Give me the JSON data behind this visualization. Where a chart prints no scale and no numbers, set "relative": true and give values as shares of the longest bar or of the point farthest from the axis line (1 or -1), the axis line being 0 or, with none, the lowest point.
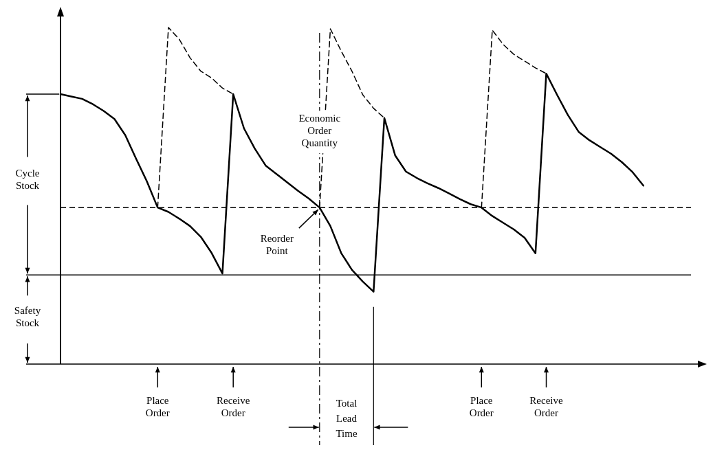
{
  "chart_data": {
    "type": "line",
    "relative": true,
    "categories": [
      null,
      null,
      null,
      null,
      null,
      null,
      null,
      null,
      null,
      null,
      null,
      null,
      null,
      null,
      null,
      null,
      null,
      null,
      null,
      null,
      null,
      null,
      null,
      null,
      null,
      null,
      null,
      null,
      null,
      null,
      null,
      null,
      null,
      null,
      null,
      null,
      null,
      null,
      null,
      null,
      null,
      null,
      null,
      null,
      null,
      null,
      null,
      null,
      null,
      null,
      null,
      null,
      null,
      null,
      null,
      null,
      null,
      null,
      null,
      null,
      null
    ],
    "series": [
      {
        "color": "#000000",
        "line_style": "solid",
        "values": [
          0.802,
          0.795,
          0.788,
          0.772,
          0.752,
          0.728,
          0.68,
          0.61,
          0.543,
          0.465,
          0.452,
          0.432,
          0.41,
          0.378,
          0.33,
          0.269,
          0.802,
          0.7,
          0.64,
          0.59,
          0.565,
          0.54,
          0.515,
          0.492,
          0.465,
          0.41,
          0.33,
          0.28,
          0.245,
          0.215,
          0.731,
          0.62,
          0.572,
          0.553,
          0.537,
          0.523,
          0.507,
          0.49,
          0.475,
          0.465,
          0.44,
          0.42,
          0.4,
          0.375,
          0.329,
          0.863,
          0.8,
          0.74,
          0.69,
          0.665,
          0.645,
          0.625,
          0.6,
          0.57,
          0.53,
          null,
          null,
          null,
          null,
          null,
          null
        ]
      },
      {
        "color": "#000000",
        "line_style": "dashed",
        "values": [
          null,
          null,
          null,
          null,
          null,
          null,
          null,
          null,
          null,
          0.465,
          1,
          0.965,
          0.91,
          0.87,
          0.85,
          0.82,
          0.802,
          null,
          null,
          null,
          null,
          null,
          null,
          null,
          null,
          null,
          null,
          null,
          null,
          null,
          null,
          null,
          null,
          null,
          null,
          null,
          null,
          null,
          null,
          null,
          null,
          null,
          null,
          null,
          null,
          null,
          null,
          null,
          null,
          null,
          null,
          null,
          null,
          null,
          null,
          null,
          null,
          null,
          null,
          null,
          null
        ]
      },
      {
        "color": "#000000",
        "line_style": "dashed",
        "values": [
          null,
          null,
          null,
          null,
          null,
          null,
          null,
          null,
          null,
          null,
          null,
          null,
          null,
          null,
          null,
          null,
          null,
          null,
          null,
          null,
          null,
          null,
          null,
          null,
          0.465,
          0.996,
          0.93,
          0.87,
          0.8,
          0.76,
          0.731,
          null,
          null,
          null,
          null,
          null,
          null,
          null,
          null,
          null,
          null,
          null,
          null,
          null,
          null,
          null,
          null,
          null,
          null,
          null,
          null,
          null,
          null,
          null,
          null,
          null,
          null,
          null,
          null,
          null,
          null
        ]
      },
      {
        "color": "#000000",
        "line_style": "dashed",
        "values": [
          null,
          null,
          null,
          null,
          null,
          null,
          null,
          null,
          null,
          null,
          null,
          null,
          null,
          null,
          null,
          null,
          null,
          null,
          null,
          null,
          null,
          null,
          null,
          null,
          null,
          null,
          null,
          null,
          null,
          null,
          null,
          null,
          null,
          null,
          null,
          null,
          null,
          null,
          null,
          0.465,
          0.992,
          0.95,
          0.92,
          0.9,
          0.88,
          0.863,
          null,
          null,
          null,
          null,
          null,
          null,
          null,
          null,
          null,
          null,
          null,
          null,
          null,
          null,
          null
        ]
      }
    ],
    "ref_lines": [
      {
        "axis": "y",
        "value": 0.265,
        "line_style": "solid"
      },
      {
        "axis": "y",
        "value": 0.465,
        "line_style": "dashed"
      }
    ],
    "annotations": [
      "Cycle Stock",
      "Safety Stock",
      "Total Lead Time",
      "Economic Order Quantity",
      "Reorder Point",
      "Place Order",
      "Receive Order",
      "Place Order",
      "Receive Order"
    ]
  }
}
